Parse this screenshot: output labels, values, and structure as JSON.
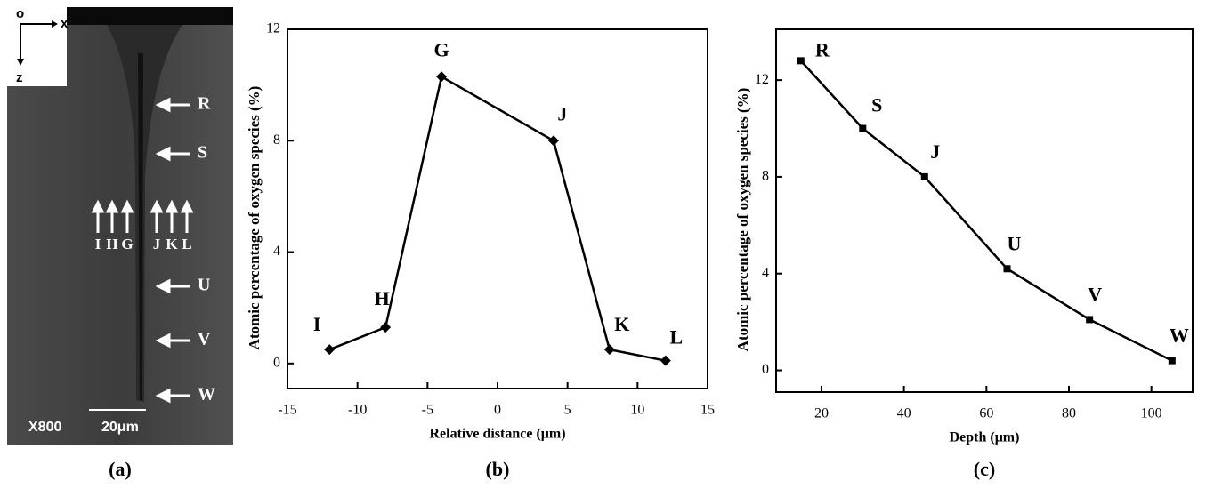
{
  "image_panel": {
    "axes_labels": [
      "o",
      "x",
      "z"
    ],
    "side_markers": [
      "R",
      "S",
      "U",
      "V",
      "W"
    ],
    "up_markers": [
      "I",
      "H",
      "G",
      "J",
      "K",
      "L"
    ],
    "magnification": "X800",
    "scale_bar": "20μm",
    "caption": "(a)"
  },
  "chart_data": [
    {
      "type": "line",
      "caption": "(b)",
      "xlabel": "Relative distance (μm)",
      "ylabel": "Atomic percentage of oxygen species (%)",
      "x": [
        -12,
        -8,
        -4,
        4,
        8,
        12
      ],
      "series": [
        {
          "color": "#000000",
          "marker": "diamond",
          "values": [
            0.5,
            1.3,
            10.3,
            8.0,
            0.5,
            0.1
          ],
          "point_labels": [
            "I",
            "H",
            "G",
            "J",
            "K",
            "L"
          ]
        }
      ],
      "xlim": [
        -15,
        15
      ],
      "xticks": [
        -15,
        -10,
        -5,
        0,
        5,
        10,
        15
      ],
      "ylim": [
        -0.9,
        12
      ],
      "yticks": [
        0,
        4,
        8,
        12
      ]
    },
    {
      "type": "line",
      "caption": "(c)",
      "xlabel": "Depth (μm)",
      "ylabel": "Atomic percentage of oxygen species (%)",
      "x": [
        15,
        30,
        45,
        65,
        85,
        105
      ],
      "series": [
        {
          "color": "#000000",
          "marker": "square",
          "values": [
            12.8,
            10.0,
            8.0,
            4.2,
            2.1,
            0.4
          ],
          "point_labels": [
            "R",
            "S",
            "J",
            "U",
            "V",
            "W"
          ]
        }
      ],
      "xlim": [
        9,
        110
      ],
      "xticks": [
        20,
        40,
        60,
        80,
        100
      ],
      "ylim": [
        -0.9,
        14.1
      ],
      "yticks": [
        0,
        4,
        8,
        12
      ]
    }
  ]
}
